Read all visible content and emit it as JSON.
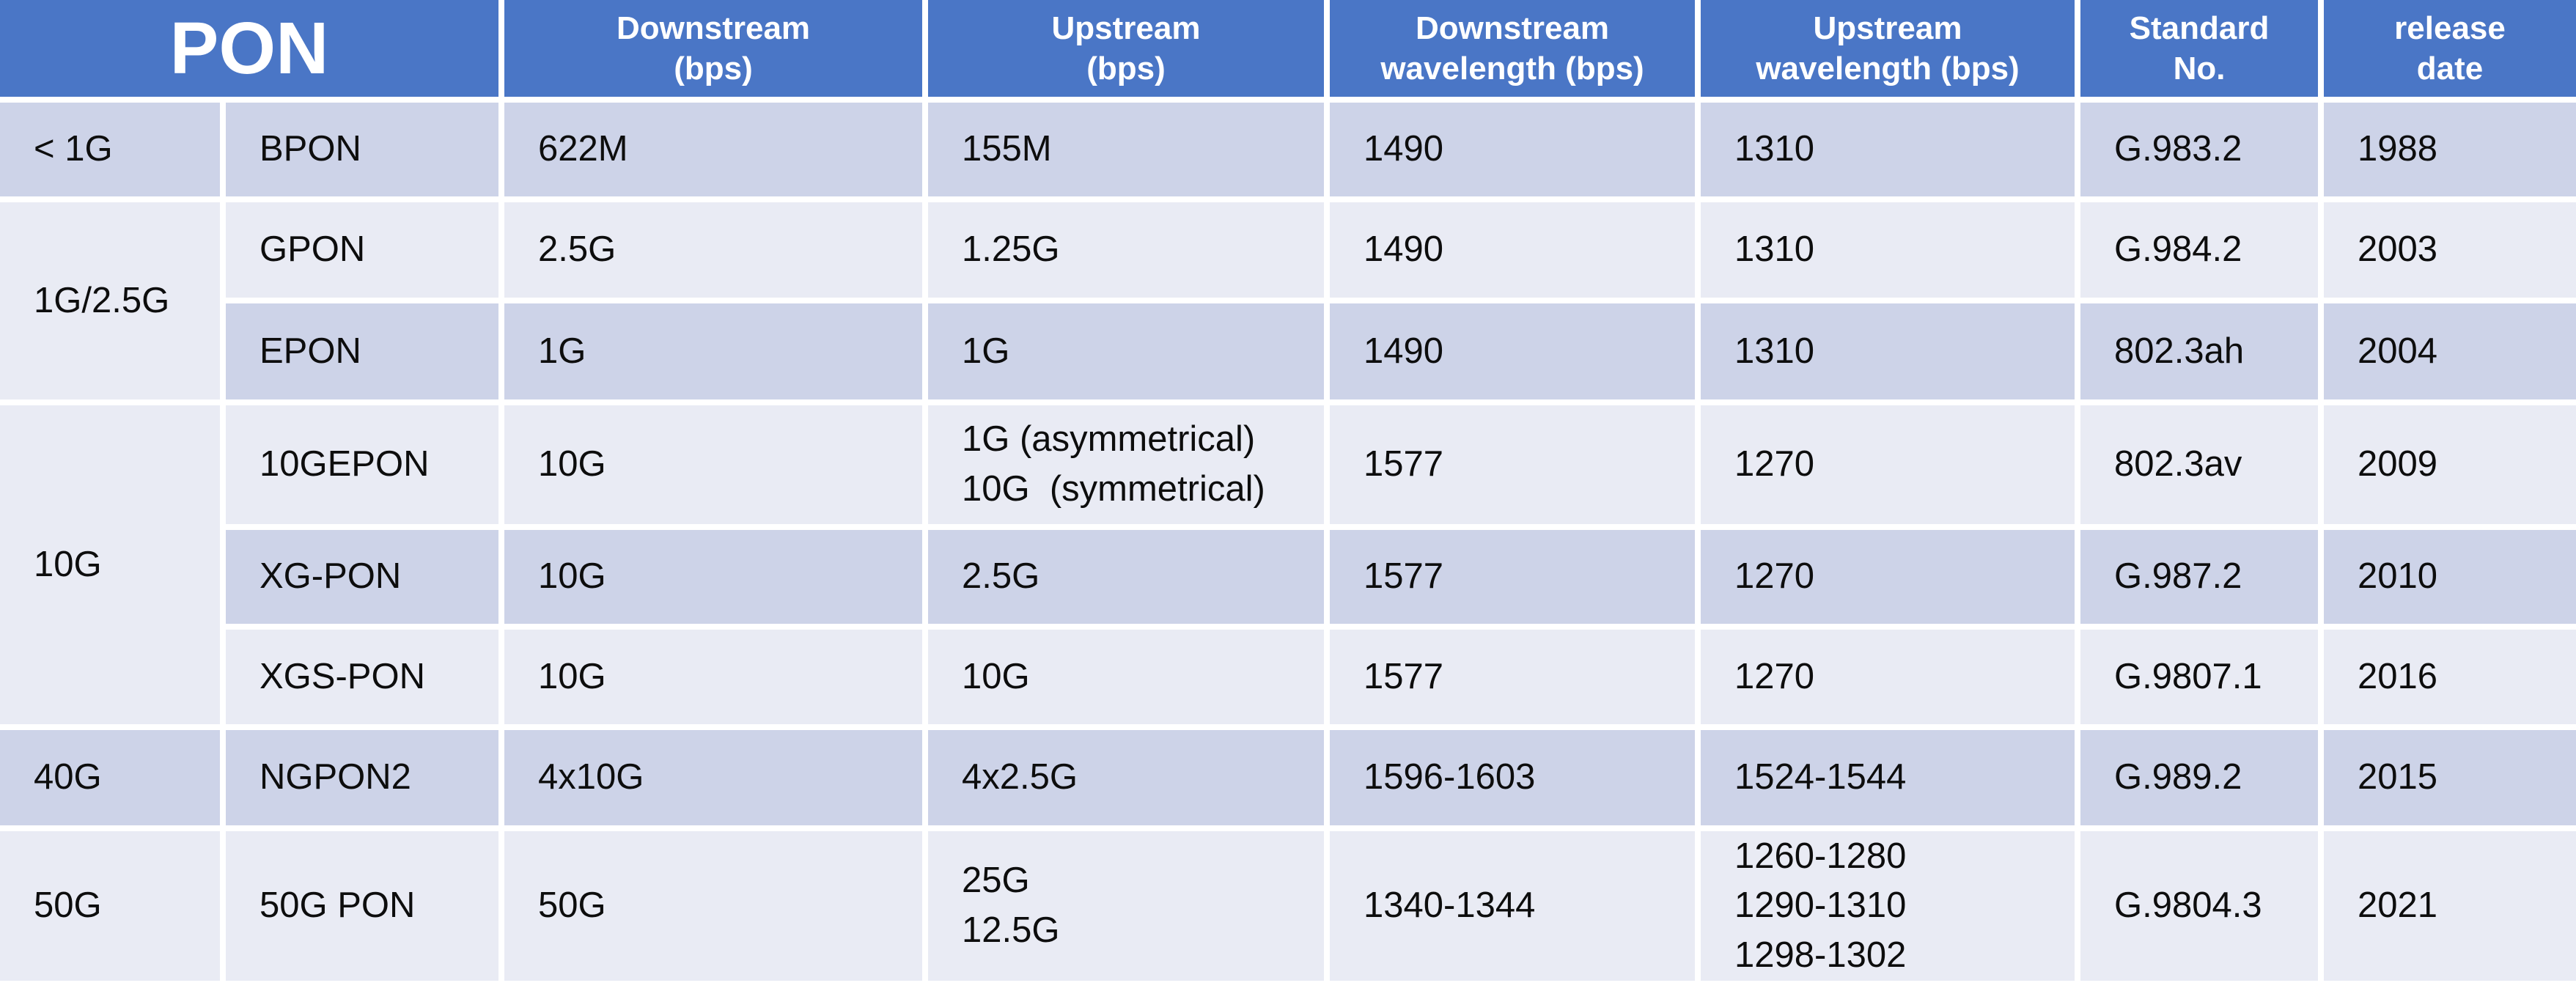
{
  "colors": {
    "header_bg": "#4a76c6",
    "header_text": "#ffffff",
    "row_dark": "#cdd3e8",
    "row_light": "#e9ebf4",
    "gridline": "#ffffff",
    "body_text": "#0d0d0d"
  },
  "header": {
    "pon": "PON",
    "downstream": {
      "line1": "Downstream",
      "line2": "(bps)"
    },
    "upstream": {
      "line1": "Upstream",
      "line2": "(bps)"
    },
    "downstream_wavelength": {
      "line1": "Downstream",
      "line2": "wavelength (bps)"
    },
    "upstream_wavelength": {
      "line1": "Upstream",
      "line2": "wavelength (bps)"
    },
    "standard_no": {
      "line1": "Standard",
      "line2": "No."
    },
    "release_date": {
      "line1": "release",
      "line2": "date"
    }
  },
  "rows": [
    {
      "group": "< 1G",
      "type": "BPON",
      "downstream": "622M",
      "upstream": "155M",
      "downstream_wavelength": "1490",
      "upstream_wavelength": "1310",
      "standard_no": "G.983.2",
      "release_date": "1988"
    },
    {
      "group": "1G/2.5G",
      "type": "GPON",
      "downstream": "2.5G",
      "upstream": "1.25G",
      "downstream_wavelength": "1490",
      "upstream_wavelength": "1310",
      "standard_no": "G.984.2",
      "release_date": "2003"
    },
    {
      "type": "EPON",
      "downstream": "1G",
      "upstream": "1G",
      "downstream_wavelength": "1490",
      "upstream_wavelength": "1310",
      "standard_no": "802.3ah",
      "release_date": "2004"
    },
    {
      "group": "10G",
      "type": "10GEPON",
      "downstream": "10G",
      "upstream": "1G (asymmetrical)\n10G  (symmetrical)",
      "downstream_wavelength": "1577",
      "upstream_wavelength": "1270",
      "standard_no": "802.3av",
      "release_date": "2009"
    },
    {
      "type": "XG-PON",
      "downstream": "10G",
      "upstream": "2.5G",
      "downstream_wavelength": "1577",
      "upstream_wavelength": "1270",
      "standard_no": "G.987.2",
      "release_date": "2010"
    },
    {
      "type": "XGS-PON",
      "downstream": "10G",
      "upstream": "10G",
      "downstream_wavelength": "1577",
      "upstream_wavelength": "1270",
      "standard_no": "G.9807.1",
      "release_date": "2016"
    },
    {
      "group": "40G",
      "type": "NGPON2",
      "downstream": "4x10G",
      "upstream": "4x2.5G",
      "downstream_wavelength": "1596-1603",
      "upstream_wavelength": "1524-1544",
      "standard_no": "G.989.2",
      "release_date": "2015"
    },
    {
      "group": "50G",
      "type": "50G PON",
      "downstream": "50G",
      "upstream": "25G\n12.5G",
      "downstream_wavelength": "1340-1344",
      "upstream_wavelength": "1260-1280\n1290-1310\n1298-1302",
      "standard_no": "G.9804.3",
      "release_date": "2021"
    }
  ]
}
